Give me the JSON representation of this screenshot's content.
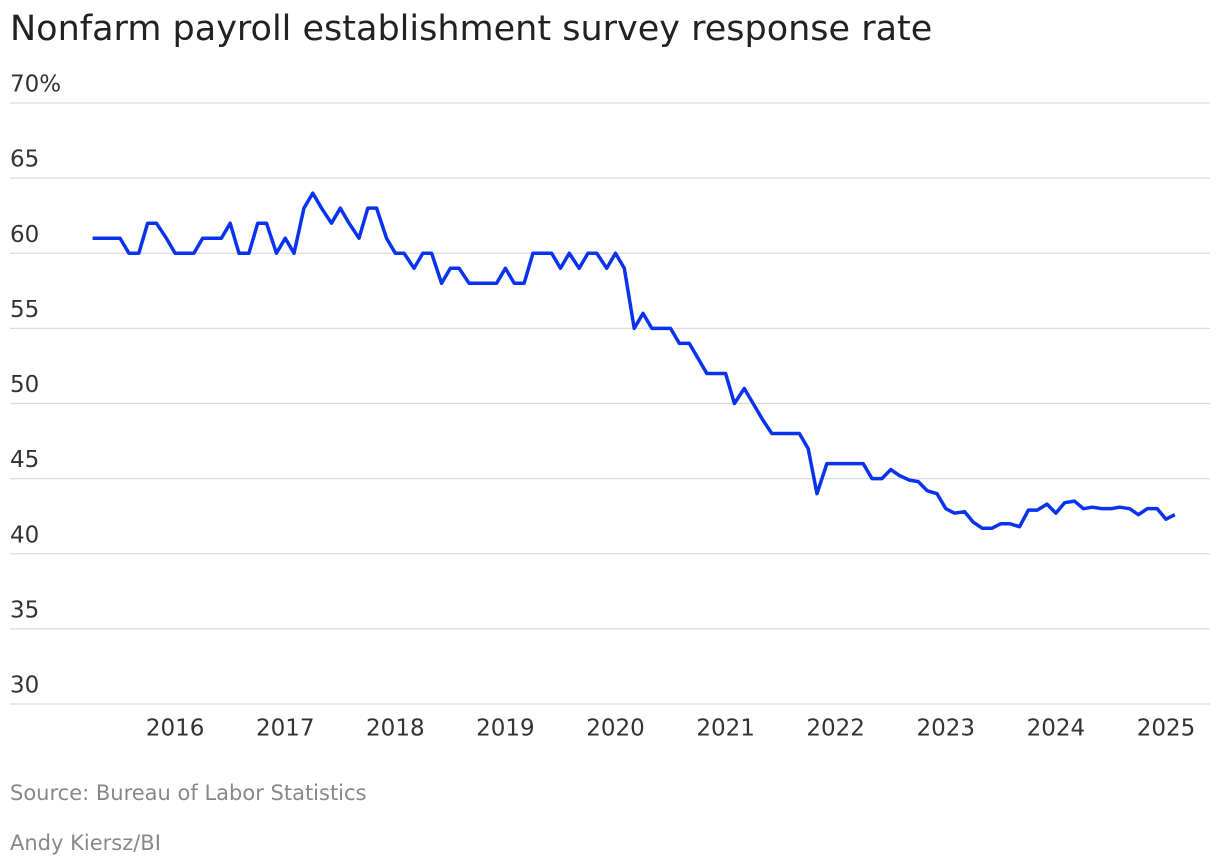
{
  "chart_data": {
    "type": "line",
    "title": "Nonfarm payroll establishment survey response rate",
    "source": "Source: Bureau of Labor Statistics",
    "credit": "Andy Kiersz/BI",
    "x": [
      2015.25,
      2015.33,
      2015.42,
      2015.5,
      2015.58,
      2015.67,
      2015.75,
      2015.83,
      2015.92,
      2016,
      2016.08,
      2016.17,
      2016.25,
      2016.33,
      2016.42,
      2016.5,
      2016.58,
      2016.67,
      2016.75,
      2016.83,
      2016.92,
      2017,
      2017.08,
      2017.17,
      2017.25,
      2017.33,
      2017.42,
      2017.5,
      2017.58,
      2017.67,
      2017.75,
      2017.83,
      2017.92,
      2018,
      2018.08,
      2018.17,
      2018.25,
      2018.33,
      2018.42,
      2018.5,
      2018.58,
      2018.67,
      2018.75,
      2018.83,
      2018.92,
      2019,
      2019.08,
      2019.17,
      2019.25,
      2019.33,
      2019.42,
      2019.5,
      2019.58,
      2019.67,
      2019.75,
      2019.83,
      2019.92,
      2020,
      2020.08,
      2020.17,
      2020.25,
      2020.33,
      2020.42,
      2020.5,
      2020.58,
      2020.67,
      2020.75,
      2020.83,
      2020.92,
      2021,
      2021.08,
      2021.17,
      2021.25,
      2021.33,
      2021.42,
      2021.5,
      2021.58,
      2021.67,
      2021.75,
      2021.83,
      2021.92,
      2022,
      2022.08,
      2022.17,
      2022.25,
      2022.33,
      2022.42,
      2022.5,
      2022.58,
      2022.67,
      2022.75,
      2022.83,
      2022.92,
      2023,
      2023.08,
      2023.17,
      2023.25,
      2023.33,
      2023.42,
      2023.5,
      2023.58,
      2023.67,
      2023.75,
      2023.83,
      2023.92,
      2024,
      2024.08,
      2024.17,
      2024.25,
      2024.33,
      2024.42,
      2024.5,
      2024.58,
      2024.67,
      2024.75,
      2024.83,
      2024.92,
      2025,
      2025.08
    ],
    "series": [
      {
        "name": "Response rate",
        "color": "#0a33f0",
        "values": [
          61,
          61,
          61,
          61,
          60,
          60,
          62,
          62,
          61,
          60,
          60,
          60,
          61,
          61,
          61,
          62,
          60,
          60,
          62,
          62,
          60,
          61,
          60,
          63,
          64,
          63,
          62,
          63,
          62,
          61,
          63,
          63,
          61,
          60,
          60,
          59,
          60,
          60,
          58,
          59,
          59,
          58,
          58,
          58,
          58,
          59,
          58,
          58,
          60,
          60,
          60,
          59,
          60,
          59,
          60,
          60,
          59,
          60,
          59,
          55,
          56,
          55,
          55,
          55,
          54,
          54,
          53,
          52,
          52,
          52,
          50,
          51,
          50,
          49,
          48,
          48,
          48,
          48,
          47,
          44,
          46,
          46,
          46,
          46,
          46,
          45,
          45,
          45.6,
          45.2,
          44.9,
          44.8,
          44.2,
          44,
          43,
          42.7,
          42.8,
          42.1,
          41.7,
          41.7,
          42,
          42,
          41.8,
          42.9,
          42.9,
          43.3,
          42.7,
          43.4,
          43.5,
          43,
          43.1,
          43,
          43,
          43.1,
          43,
          42.6,
          43,
          43,
          42.3,
          42.6
        ]
      }
    ],
    "xlim": [
      2014.5,
      2025.4
    ],
    "xticks": [
      2016,
      2017,
      2018,
      2019,
      2020,
      2021,
      2022,
      2023,
      2024,
      2025
    ],
    "ylim": [
      30,
      70
    ],
    "yticks": [
      30,
      35,
      40,
      45,
      50,
      55,
      60,
      65,
      {
        "value": 70,
        "label": "70%"
      }
    ],
    "grid": true
  }
}
